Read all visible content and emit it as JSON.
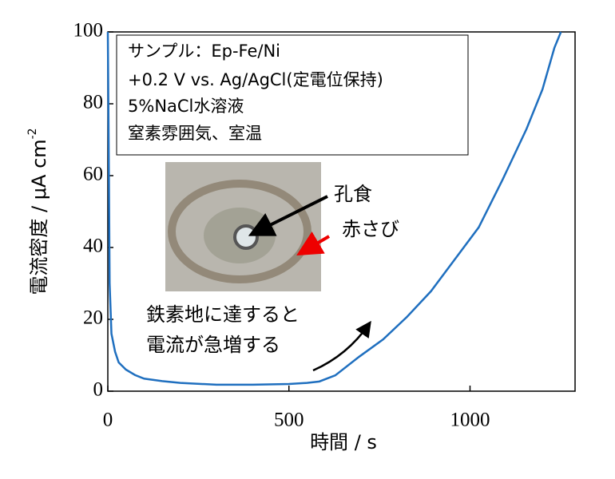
{
  "chart_data": {
    "type": "line",
    "x_label": "時間 / s",
    "y_label": "電流密度 / μA cm",
    "y_label_sup": "-2",
    "annotations": [
      "サンプル：Ep-Fe/Ni",
      "+0.2 V vs. Ag/AgCl(定電位保持)",
      "5%NaCl水溶液",
      "窒素雰囲気、室温",
      "孔食",
      "赤さび",
      "鉄素地に達すると",
      "電流が急増する"
    ],
    "x": [
      0,
      3,
      5,
      10,
      20,
      30,
      50,
      75,
      100,
      150,
      200,
      300,
      400,
      500,
      550,
      584,
      628,
      694,
      760,
      826,
      892,
      958,
      1024,
      1090,
      1156,
      1200,
      1233,
      1251
    ],
    "series": [
      {
        "name": "電流密度",
        "color": "#1f6fbf",
        "values": [
          100,
          60,
          30,
          16,
          11,
          8,
          6,
          4.5,
          3.5,
          2.8,
          2.3,
          1.8,
          1.8,
          2.0,
          2.3,
          2.7,
          4.4,
          9.6,
          14.4,
          20.7,
          27.8,
          36.7,
          45.6,
          58.9,
          73,
          84,
          95.6,
          100
        ]
      }
    ],
    "xlim": [
      0,
      1290
    ],
    "ylim": [
      0,
      100
    ],
    "xticks": [
      0,
      500,
      1000
    ],
    "yticks": [
      0,
      20,
      40,
      60,
      80,
      100
    ]
  }
}
